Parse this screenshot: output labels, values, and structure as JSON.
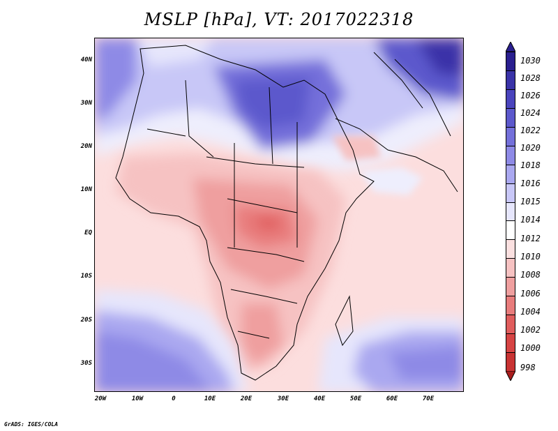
{
  "title": "MSLP [hPa], VT: 2017022318",
  "footer": "GrADS: IGES/COLA",
  "axes": {
    "y_ticks": [
      "40N",
      "30N",
      "20N",
      "10N",
      "EQ",
      "10S",
      "20S",
      "30S"
    ],
    "x_ticks": [
      "20W",
      "10W",
      "0",
      "10E",
      "20E",
      "30E",
      "40E",
      "50E",
      "60E",
      "70E"
    ]
  },
  "colorbar": {
    "levels": [
      "1030",
      "1028",
      "1026",
      "1024",
      "1022",
      "1020",
      "1018",
      "1016",
      "1015",
      "1014",
      "1012",
      "1010",
      "1008",
      "1006",
      "1004",
      "1002",
      "1000",
      "998"
    ],
    "colors": [
      "#2a1f8f",
      "#3a33a8",
      "#4a44bd",
      "#5c58cc",
      "#7470da",
      "#8e8ae6",
      "#aaa8f0",
      "#c8c7f7",
      "#e6e6fc",
      "#ffffff",
      "#fbe0e0",
      "#f6c2c2",
      "#ef9f9f",
      "#e87c7c",
      "#e05d5d",
      "#d64444",
      "#c83333",
      "#a91d1d"
    ]
  }
}
